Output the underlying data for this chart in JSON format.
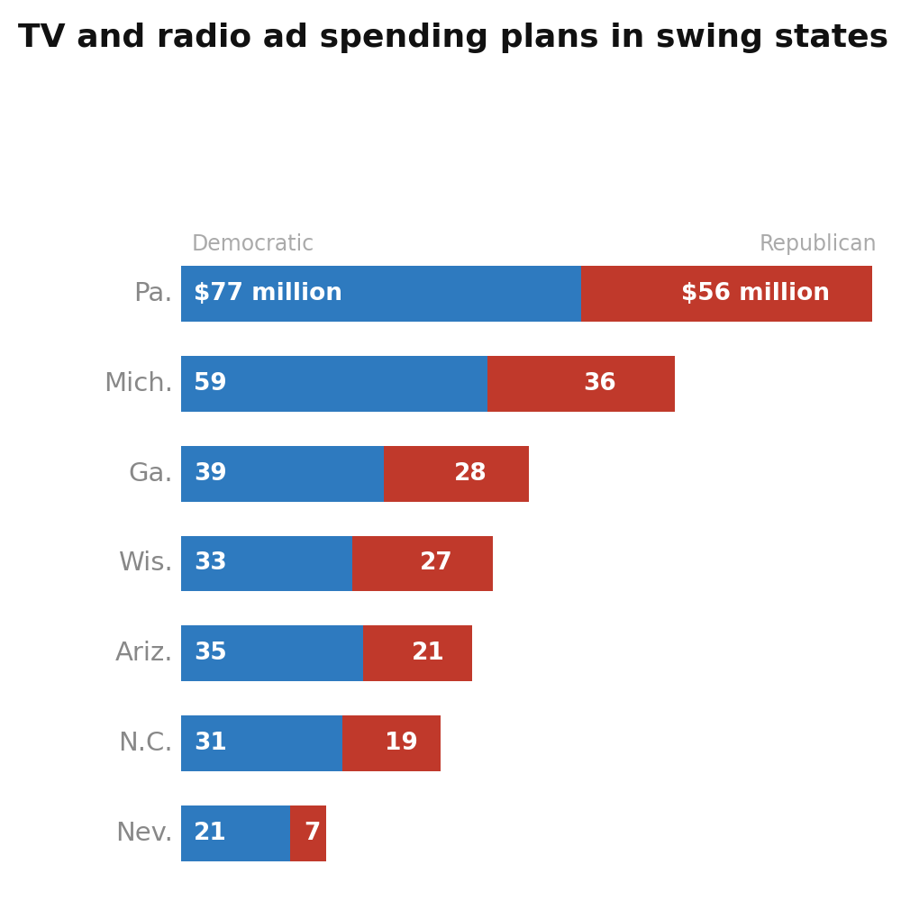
{
  "title": "TV and radio ad spending plans in swing states",
  "dem_label": "Democratic",
  "rep_label": "Republican",
  "states": [
    "Pa.",
    "Mich.",
    "Ga.",
    "Wis.",
    "Ariz.",
    "N.C.",
    "Nev."
  ],
  "dem_values": [
    77,
    59,
    39,
    33,
    35,
    31,
    21
  ],
  "rep_values": [
    56,
    36,
    28,
    27,
    21,
    19,
    7
  ],
  "dem_color": "#2e7abf",
  "rep_color": "#c0392b",
  "dem_labels": [
    "$77 million",
    "59",
    "39",
    "33",
    "35",
    "31",
    "21"
  ],
  "rep_labels": [
    "$56 million",
    "36",
    "28",
    "27",
    "21",
    "19",
    "7"
  ],
  "background_color": "#ffffff",
  "title_fontsize": 26,
  "value_fontsize": 19,
  "state_fontsize": 21,
  "header_fontsize": 17,
  "bar_height": 0.62,
  "max_value": 135,
  "state_label_color": "#888888",
  "header_color": "#aaaaaa"
}
